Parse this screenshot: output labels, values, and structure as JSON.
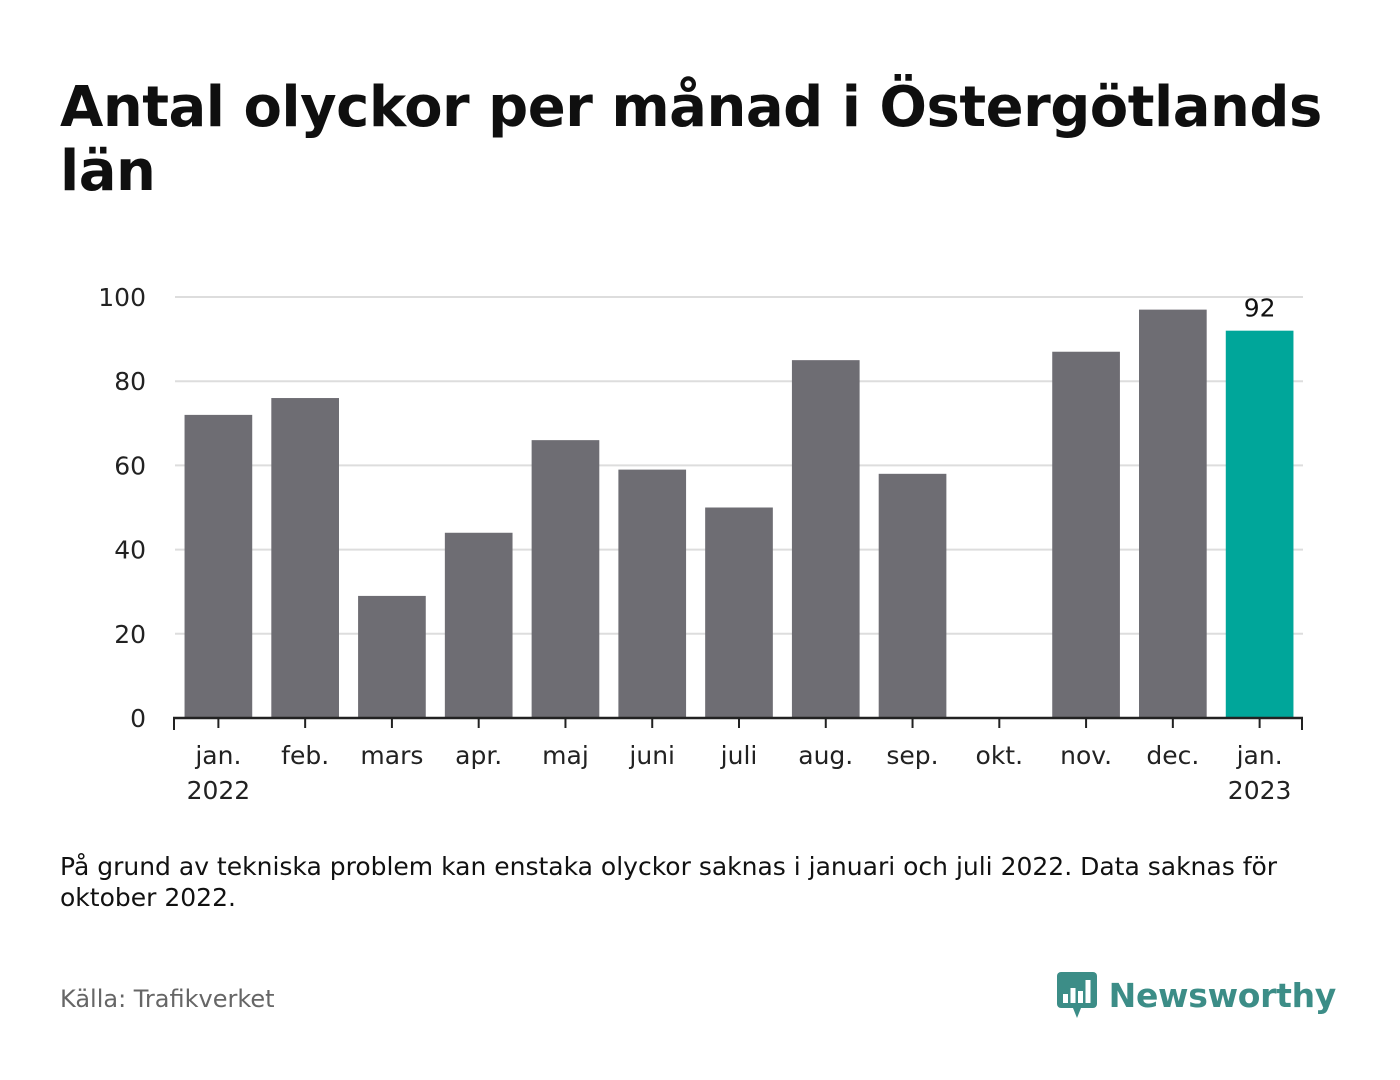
{
  "chart_data": {
    "type": "bar",
    "title": "Antal olyckor per månad i Östergötlands län",
    "categories": [
      "jan.",
      "feb.",
      "mars",
      "apr.",
      "maj",
      "juni",
      "juli",
      "aug.",
      "sep.",
      "okt.",
      "nov.",
      "dec.",
      "jan."
    ],
    "year_labels": [
      "2022",
      "",
      "",
      "",
      "",
      "",
      "",
      "",
      "",
      "",
      "",
      "",
      "2023"
    ],
    "values": [
      72,
      76,
      29,
      44,
      66,
      59,
      50,
      85,
      58,
      null,
      87,
      97,
      92
    ],
    "highlight_index": 12,
    "data_labels": [
      {
        "index": 12,
        "text": "92"
      }
    ],
    "ylim": [
      0,
      100
    ],
    "yticks": [
      0,
      20,
      40,
      60,
      80,
      100
    ],
    "grid": true,
    "xlabel": "",
    "ylabel": "",
    "colors": {
      "bar": "#6e6d73",
      "highlight": "#00a69a",
      "grid": "#dddddd",
      "axis": "#222222"
    }
  },
  "note": "På grund av tekniska problem kan enstaka olyckor saknas i januari och juli 2022. Data saknas för oktober 2022.",
  "source": "Källa: Trafikverket",
  "brand": {
    "name": "Newsworthy",
    "icon": "newsworthy-logo-icon",
    "color": "#3c8d87"
  }
}
